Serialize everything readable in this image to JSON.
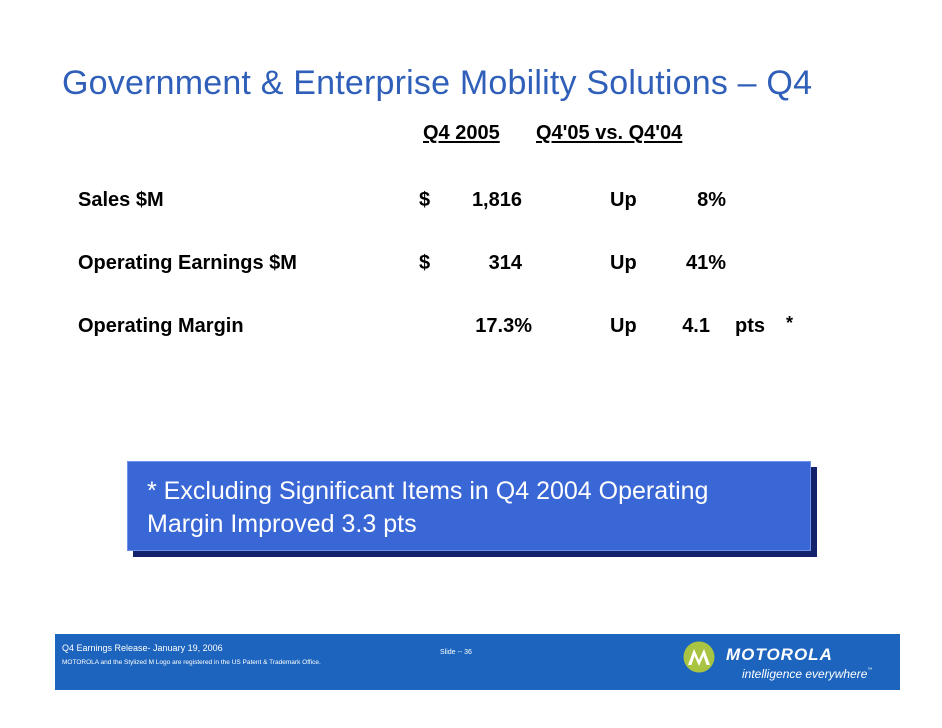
{
  "slide": {
    "title": "Government & Enterprise Mobility Solutions – Q4"
  },
  "table": {
    "headers": [
      "Q4 2005",
      "Q4'05 vs. Q4'04"
    ],
    "rows": [
      {
        "label": "Sales $M",
        "currency": "$",
        "value": "1,816",
        "direction": "Up",
        "change": "8%",
        "unit": ""
      },
      {
        "label": "Operating Earnings $M",
        "currency": "$",
        "value": "314",
        "direction": "Up",
        "change": "41%",
        "unit": ""
      },
      {
        "label": "Operating Margin",
        "currency": "",
        "value": "17.3%",
        "direction": "Up",
        "change": "4.1",
        "unit": "pts"
      }
    ],
    "footnote_marker": "*"
  },
  "callout": {
    "line1": "* Excluding Significant Items in Q4 2004 Operating",
    "line2": "Margin Improved 3.3 pts"
  },
  "footer": {
    "release": "Q4 Earnings Release- January 19, 2006",
    "legal": "MOTOROLA and the Stylized M Logo are registered in the US Patent & Trademark Office.",
    "slide_number": "Slide -- 36",
    "brand": "MOTOROLA",
    "tagline": "intelligence everywhere",
    "tagline_mark": "™"
  },
  "colors": {
    "title": "#2f5fb8",
    "callout_background": "#3a67d6",
    "callout_shadow": "#14226b",
    "footer_background": "#1c64bd",
    "logo_circle": "#a8c440"
  }
}
